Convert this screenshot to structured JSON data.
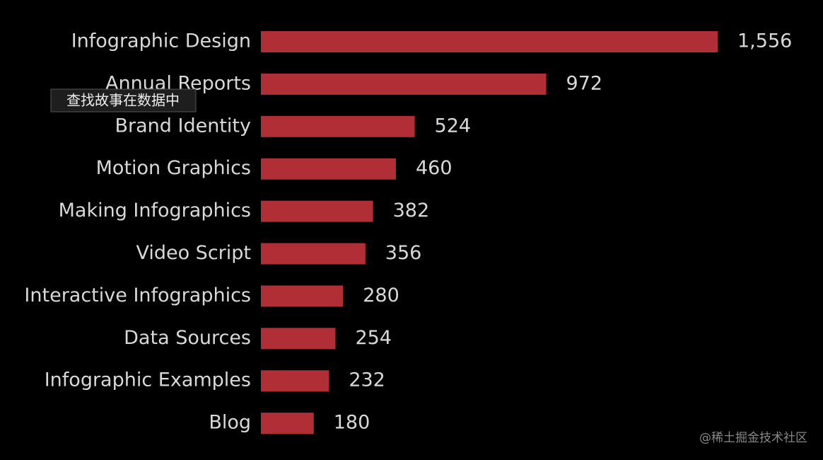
{
  "chart_data": {
    "type": "bar",
    "orientation": "horizontal",
    "categories": [
      "Infographic Design",
      "Annual Reports",
      "Brand Identity",
      "Motion Graphics",
      "Making Infographics",
      "Video Script",
      "Interactive Infographics",
      "Data Sources",
      "Infographic Examples",
      "Blog"
    ],
    "values": [
      1556,
      972,
      524,
      460,
      382,
      356,
      280,
      254,
      232,
      180
    ],
    "value_labels": [
      "1,556",
      "972",
      "524",
      "460",
      "382",
      "356",
      "280",
      "254",
      "232",
      "180"
    ],
    "color": "#b02e36",
    "tooltip": "查找故事在数据中",
    "watermark": "@稀土掘金技术社区"
  }
}
